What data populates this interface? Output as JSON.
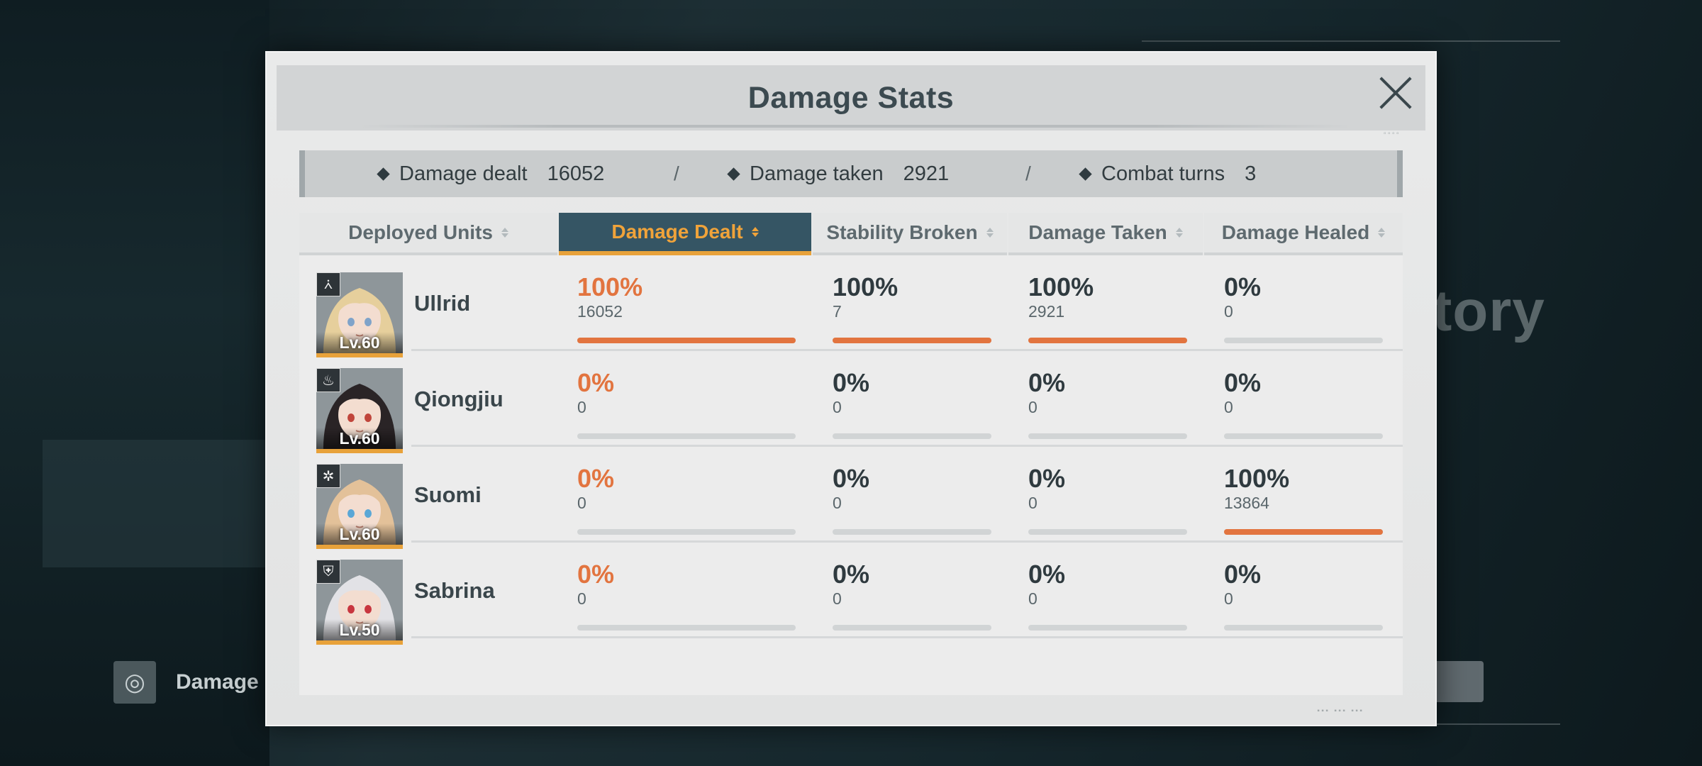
{
  "background": {
    "victory_text": "tory",
    "damage_button_label": "Damage"
  },
  "modal": {
    "title": "Damage Stats",
    "summary": {
      "damage_dealt_label": "Damage dealt",
      "damage_dealt_value": "16052",
      "damage_taken_label": "Damage taken",
      "damage_taken_value": "2921",
      "combat_turns_label": "Combat turns",
      "combat_turns_value": "3",
      "separator": "/"
    },
    "columns": [
      {
        "label": "Deployed Units",
        "active": false
      },
      {
        "label": "Damage Dealt",
        "active": true
      },
      {
        "label": "Stability Broken",
        "active": false
      },
      {
        "label": "Damage Taken",
        "active": false
      },
      {
        "label": "Damage Healed",
        "active": false
      }
    ],
    "units": [
      {
        "name": "Ullrid",
        "level": "Lv.60",
        "class_icon": "sword-class-icon",
        "stats": [
          {
            "pct": "100%",
            "value": "16052",
            "fill": 1.0
          },
          {
            "pct": "100%",
            "value": "7",
            "fill": 1.0
          },
          {
            "pct": "100%",
            "value": "2921",
            "fill": 1.0
          },
          {
            "pct": "0%",
            "value": "0",
            "fill": 0.0
          }
        ]
      },
      {
        "name": "Qiongjiu",
        "level": "Lv.60",
        "class_icon": "flame-class-icon",
        "stats": [
          {
            "pct": "0%",
            "value": "0",
            "fill": 0.0
          },
          {
            "pct": "0%",
            "value": "0",
            "fill": 0.0
          },
          {
            "pct": "0%",
            "value": "0",
            "fill": 0.0
          },
          {
            "pct": "0%",
            "value": "0",
            "fill": 0.0
          }
        ]
      },
      {
        "name": "Suomi",
        "level": "Lv.60",
        "class_icon": "support-class-icon",
        "stats": [
          {
            "pct": "0%",
            "value": "0",
            "fill": 0.0
          },
          {
            "pct": "0%",
            "value": "0",
            "fill": 0.0
          },
          {
            "pct": "0%",
            "value": "0",
            "fill": 0.0
          },
          {
            "pct": "100%",
            "value": "13864",
            "fill": 1.0
          }
        ]
      },
      {
        "name": "Sabrina",
        "level": "Lv.50",
        "class_icon": "shield-class-icon",
        "stats": [
          {
            "pct": "0%",
            "value": "0",
            "fill": 0.0
          },
          {
            "pct": "0%",
            "value": "0",
            "fill": 0.0
          },
          {
            "pct": "0%",
            "value": "0",
            "fill": 0.0
          },
          {
            "pct": "0%",
            "value": "0",
            "fill": 0.0
          }
        ]
      }
    ]
  },
  "colors": {
    "accent_orange": "#e2743f",
    "active_header_bg": "#355564",
    "active_header_text": "#f0a33a",
    "hair_colors": [
      "#e6cf9c",
      "#2a2426",
      "#e3c199",
      "#e2e2e6"
    ],
    "eye_colors": [
      "#7fa3c9",
      "#c0453b",
      "#5aa7d6",
      "#c8363f"
    ]
  }
}
